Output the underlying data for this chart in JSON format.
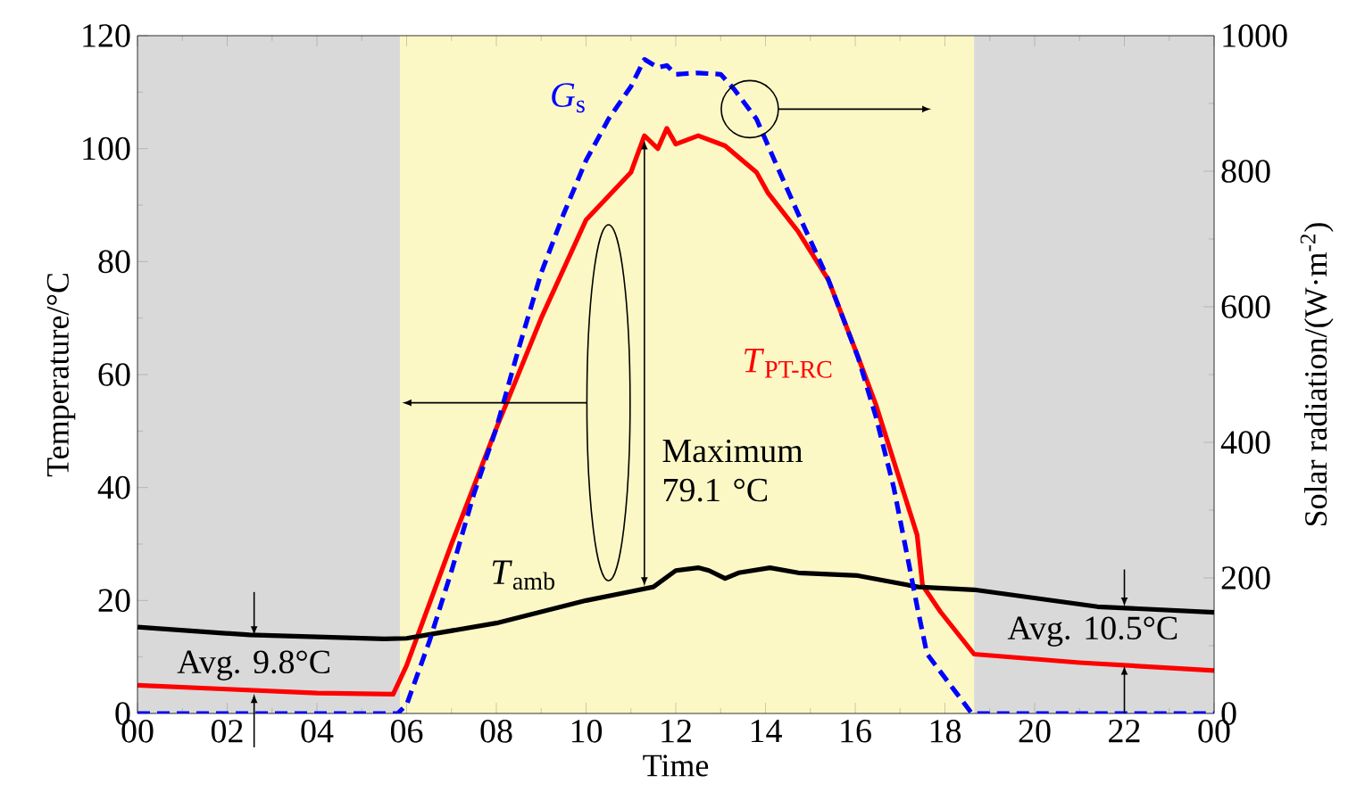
{
  "chart_data": {
    "type": "line",
    "xlabel": "Time",
    "ylabel": "Temperature/°C",
    "y2label": "Solar radiation/(W·m$^{-2}$)",
    "xlim": [
      0,
      24
    ],
    "xticks": [
      {
        "value": 0,
        "label": "00"
      },
      {
        "value": 2,
        "label": "02"
      },
      {
        "value": 4,
        "label": "04"
      },
      {
        "value": 6,
        "label": "06"
      },
      {
        "value": 8,
        "label": "08"
      },
      {
        "value": 10,
        "label": "10"
      },
      {
        "value": 12,
        "label": "12"
      },
      {
        "value": 14,
        "label": "14"
      },
      {
        "value": 16,
        "label": "16"
      },
      {
        "value": 18,
        "label": "18"
      },
      {
        "value": 20,
        "label": "20"
      },
      {
        "value": 22,
        "label": "22"
      },
      {
        "value": 24,
        "label": "00"
      }
    ],
    "ylim": [
      0,
      120
    ],
    "yticks": [
      0,
      20,
      40,
      60,
      80,
      100,
      120
    ],
    "y2lim": [
      0,
      1000
    ],
    "y2ticks": [
      0,
      200,
      400,
      600,
      800,
      1000
    ],
    "grid": false,
    "marker": "none",
    "bands": [
      {
        "axis": "x",
        "from": 0,
        "to": 5.85,
        "color": "#d9d9d9"
      },
      {
        "axis": "x",
        "from": 5.85,
        "to": 18.65,
        "color": "#fbf8c6"
      },
      {
        "axis": "x",
        "from": 18.65,
        "to": 24,
        "color": "#d9d9d9"
      }
    ],
    "series": [
      {
        "name": "*T*$_{PT-RC}$",
        "color": "#ff0000",
        "line_style": "solid",
        "x": [
          0,
          2,
          4,
          5.7,
          6,
          7,
          8,
          9,
          10,
          11,
          11.3,
          11.6,
          11.8,
          12,
          12.5,
          13.1,
          13.8,
          14.06,
          14.73,
          15.4,
          16.06,
          16.46,
          17.38,
          17.5,
          17.9,
          18.65,
          21,
          24
        ],
        "values": [
          5.0,
          4.3,
          3.6,
          3.4,
          8.5,
          30,
          50.5,
          70,
          87.4,
          95.8,
          102.3,
          100,
          103.6,
          100.8,
          102.3,
          100.5,
          95.8,
          92.1,
          85.3,
          76.8,
          63.2,
          54.7,
          31.6,
          22.7,
          18,
          10.5,
          9,
          7.6
        ]
      },
      {
        "name": "*T*$_{amb}$",
        "color": "#000000",
        "line_style": "solid",
        "x": [
          0,
          2.5,
          5.5,
          6,
          8,
          10,
          11,
          11.5,
          12,
          12.5,
          12.74,
          13.1,
          13.4,
          14.1,
          14.73,
          16.06,
          17.4,
          18.65,
          21.4,
          24
        ],
        "values": [
          15.3,
          13.9,
          13.2,
          13.3,
          16,
          20,
          21.6,
          22.4,
          25.3,
          25.8,
          25.3,
          23.9,
          24.9,
          25.8,
          24.9,
          24.4,
          22.4,
          21.9,
          18.9,
          17.9
        ]
      },
      {
        "name": "*G*$_{s}$",
        "color": "#0000ff",
        "line_style": "dashed",
        "axis": "y2",
        "x": [
          0,
          5.8,
          6,
          6.5,
          7,
          7.5,
          8,
          8.5,
          9,
          9.5,
          10,
          10.5,
          11,
          11.3,
          11.6,
          11.8,
          12,
          12.5,
          13,
          13.3,
          13.8,
          14.2,
          14.73,
          15.4,
          16.06,
          16.46,
          16.86,
          17.2,
          17.38,
          17.6,
          18.2,
          18.6,
          24
        ],
        "values": [
          0,
          0,
          13,
          105,
          210,
          324,
          421,
          539,
          650,
          737,
          816,
          877,
          925,
          965,
          953,
          956,
          943,
          945,
          943,
          921,
          877,
          816,
          737,
          640,
          526,
          438,
          333,
          219,
          158,
          88,
          35,
          0,
          0
        ]
      }
    ],
    "annotations": [
      "Avg. 9.8°C",
      "Avg. 10.5°C",
      "Maximum 79.1 °C"
    ]
  }
}
